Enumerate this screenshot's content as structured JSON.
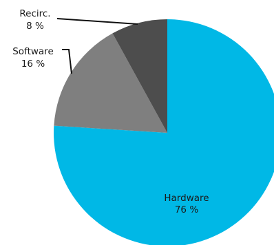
{
  "chart_data": {
    "type": "pie",
    "slices": [
      {
        "label": "Hardware",
        "value": 76,
        "display": "76 %",
        "color": "#00b8e6"
      },
      {
        "label": "Software",
        "value": 16,
        "display": "16 %",
        "color": "#7f7f7f"
      },
      {
        "label": "Recirc.",
        "value": 8,
        "display": "8 %",
        "color": "#4d4d4d"
      }
    ],
    "start": "12 o'clock",
    "direction": "clockwise",
    "title": "",
    "legend": "none",
    "label_style": "data labels with leader lines for small slices"
  }
}
